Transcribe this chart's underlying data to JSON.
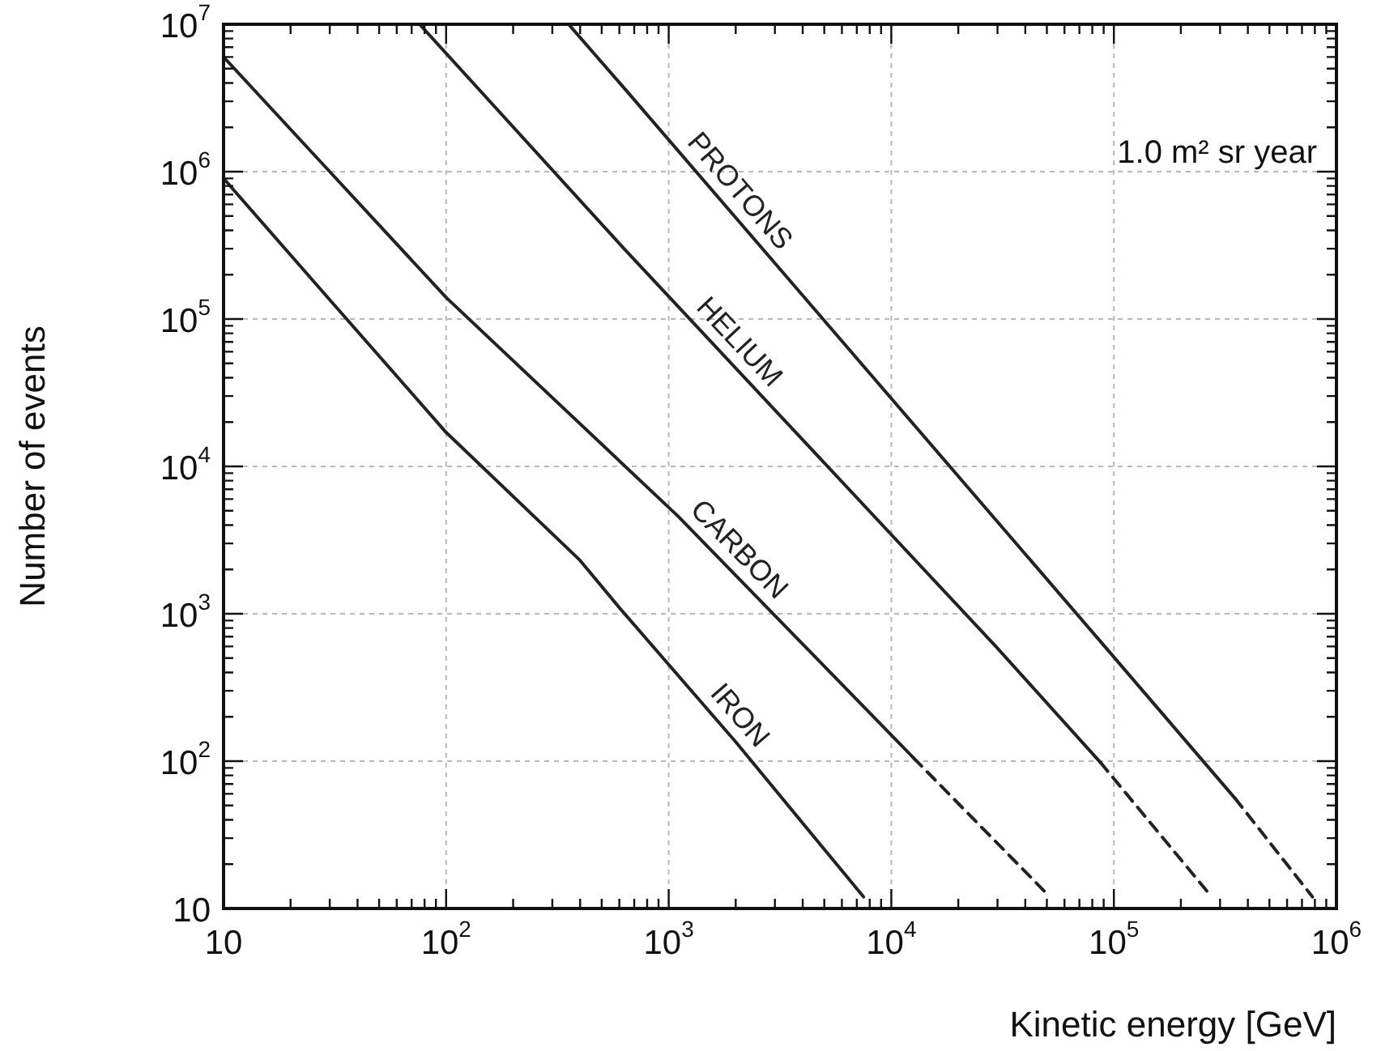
{
  "chart_data": {
    "type": "line",
    "xlabel": "Kinetic energy [GeV]",
    "ylabel": "Number of events",
    "log": "xy",
    "grid": true,
    "legend": false,
    "marker": "none",
    "xlim": [
      10,
      1000000
    ],
    "ylim": [
      10,
      10000000
    ],
    "xticks": [
      10,
      {
        "value": 100,
        "label": "10$^{2}$"
      },
      {
        "value": 1000,
        "label": "10$^{3}$"
      },
      {
        "value": 10000,
        "label": "10$^{4}$"
      },
      {
        "value": 100000,
        "label": "10$^{5}$"
      },
      {
        "value": 1000000,
        "label": "10$^{6}$"
      }
    ],
    "yticks": [
      10,
      {
        "value": 100,
        "label": "10$^{2}$"
      },
      {
        "value": 1000,
        "label": "10$^{3}$"
      },
      {
        "value": 10000,
        "label": "10$^{4}$"
      },
      {
        "value": 100000,
        "label": "10$^{5}$"
      },
      {
        "value": 1000000,
        "label": "10$^{6}$"
      },
      {
        "value": 10000000,
        "label": "10$^{7}$"
      }
    ],
    "annotations": [
      "1.0 m² sr year"
    ],
    "series": [
      {
        "name": "PROTONS",
        "color": "#222222",
        "line_style": "solid",
        "x": [
          355,
          630,
          91000,
          350000
        ],
        "values": [
          10000000,
          3700000,
          600,
          56
        ]
      },
      {
        "color": "#222222",
        "line_style": "dashed",
        "x": [
          350000,
          780000
        ],
        "values": [
          56,
          12
        ]
      },
      {
        "name": "HELIUM",
        "color": "#222222",
        "line_style": "solid",
        "x": [
          76,
          630,
          29500,
          87000
        ],
        "values": [
          10000000,
          300000,
          600,
          98
        ]
      },
      {
        "color": "#222222",
        "line_style": "dashed",
        "x": [
          87000,
          275000
        ],
        "values": [
          98,
          12
        ]
      },
      {
        "name": "CARBON",
        "color": "#222222",
        "line_style": "solid",
        "x": [
          10,
          30,
          100,
          1100,
          12600
        ],
        "values": [
          6000000,
          1000000,
          140000,
          4600,
          105
        ]
      },
      {
        "color": "#222222",
        "line_style": "dashed",
        "x": [
          12600,
          49000
        ],
        "values": [
          105,
          13
        ]
      },
      {
        "name": "IRON",
        "color": "#222222",
        "line_style": "solid",
        "x": [
          10,
          30,
          100,
          400,
          600,
          2000,
          7500
        ],
        "values": [
          900000,
          135000,
          17000,
          2300,
          1100,
          135,
          12
        ]
      }
    ]
  }
}
